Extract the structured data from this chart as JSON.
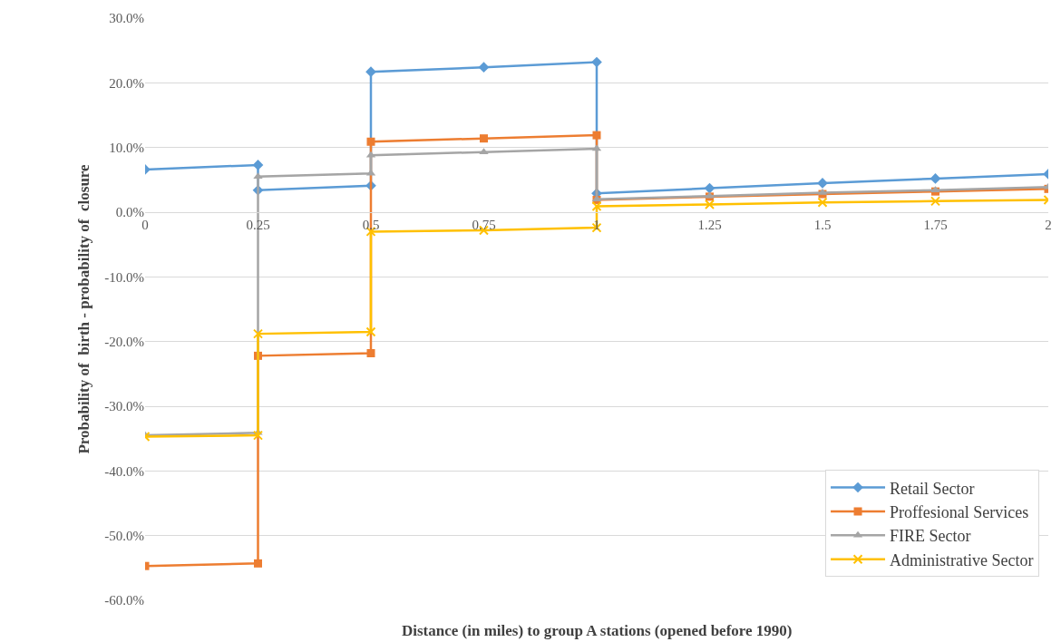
{
  "chart_data": {
    "type": "line",
    "xlabel": "Distance (in miles) to group A stations (opened before 1990)",
    "ylabel": "Probability of  birth - probability of  closure",
    "xlim": [
      0,
      2
    ],
    "xticks": [
      0,
      0.25,
      0.5,
      0.75,
      1,
      1.25,
      1.5,
      1.75,
      2
    ],
    "ylim": [
      -60,
      30
    ],
    "yticks": [
      {
        "value": -60,
        "label": "-60.0%"
      },
      {
        "value": -50,
        "label": "-50.0%"
      },
      {
        "value": -40,
        "label": "-40.0%"
      },
      {
        "value": -30,
        "label": "-30.0%"
      },
      {
        "value": -20,
        "label": "-20.0%"
      },
      {
        "value": -10,
        "label": "-10.0%"
      },
      {
        "value": 0,
        "label": "0.0%"
      },
      {
        "value": 10,
        "label": "10.0%"
      },
      {
        "value": 20,
        "label": "20.0%"
      },
      {
        "value": 30,
        "label": "30.0%"
      }
    ],
    "grid": "y",
    "legend": "bottom right",
    "line_style": "solid",
    "series": [
      {
        "name": "Retail Sector",
        "color": "#5b9bd5",
        "marker": "diamond",
        "x": [
          0,
          0.25,
          0.25,
          0.5,
          0.5,
          0.75,
          1,
          1,
          1.25,
          1.5,
          1.75,
          2
        ],
        "values": [
          6.6,
          7.3,
          3.4,
          4.1,
          21.7,
          22.4,
          23.2,
          2.9,
          3.7,
          4.5,
          5.2,
          5.9
        ]
      },
      {
        "name": "Proffesional Services",
        "color": "#ed7d31",
        "marker": "square",
        "x": [
          0,
          0.25,
          0.25,
          0.5,
          0.5,
          0.75,
          1,
          1,
          1.25,
          1.5,
          1.75,
          2
        ],
        "values": [
          -54.7,
          -54.3,
          -22.2,
          -21.8,
          10.9,
          11.4,
          11.9,
          1.9,
          2.4,
          2.8,
          3.2,
          3.6
        ]
      },
      {
        "name": "FIRE Sector",
        "color": "#a5a5a5",
        "marker": "triangle",
        "x": [
          0,
          0.25,
          0.25,
          0.5,
          0.5,
          0.75,
          1,
          1,
          1.25,
          1.5,
          1.75,
          2
        ],
        "values": [
          -34.5,
          -34.1,
          5.5,
          6.0,
          8.8,
          9.3,
          9.8,
          2.0,
          2.5,
          3.0,
          3.4,
          3.9
        ]
      },
      {
        "name": "Administrative Sector",
        "color": "#ffc000",
        "marker": "cross",
        "x": [
          0,
          0.25,
          0.25,
          0.5,
          0.5,
          0.75,
          1,
          1,
          1.25,
          1.5,
          1.75,
          2
        ],
        "values": [
          -34.7,
          -34.5,
          -18.8,
          -18.5,
          -3.0,
          -2.8,
          -2.4,
          0.9,
          1.2,
          1.5,
          1.7,
          1.9
        ]
      }
    ]
  }
}
